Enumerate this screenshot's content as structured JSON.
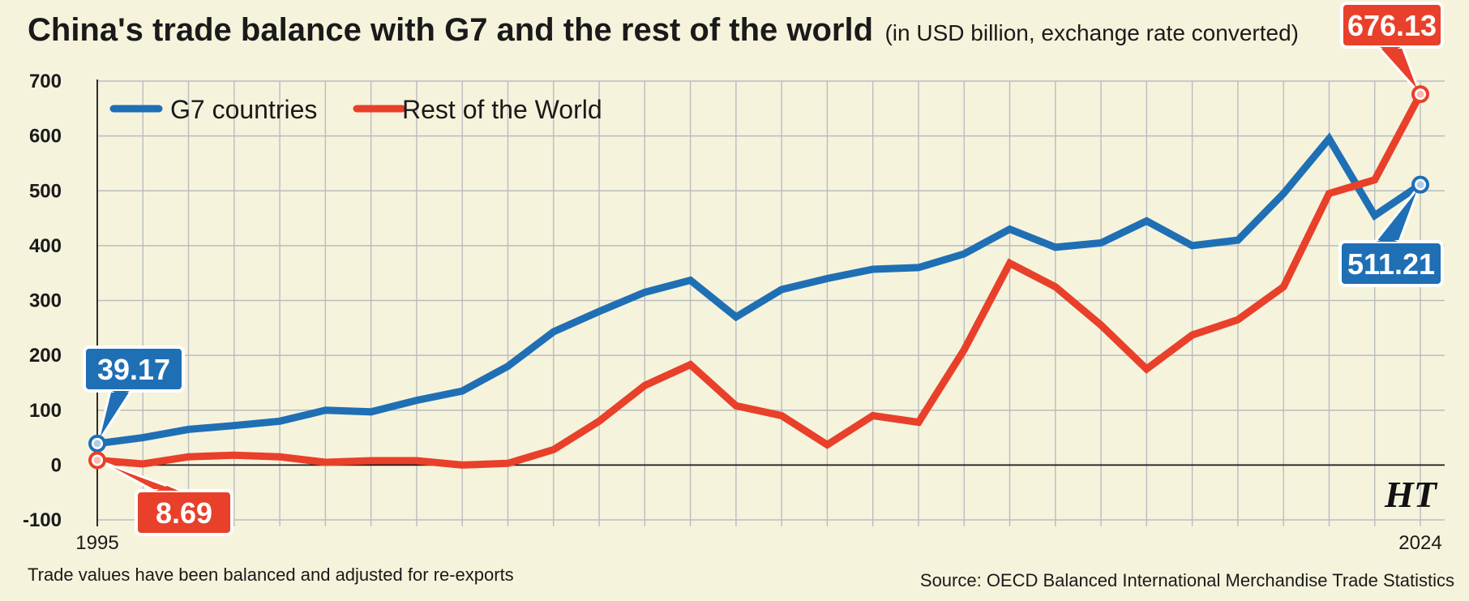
{
  "title": "China's trade balance with G7 and the rest of the world",
  "subtitle": "(in USD billion, exchange rate converted)",
  "footnote_left": "Trade values have been balanced and adjusted for re-exports",
  "footnote_right": "Source: OECD Balanced International Merchandise Trade Statistics",
  "logo": "HT",
  "colors": {
    "background": "#f6f3dc",
    "grid": "#b9bcc0",
    "g7": "#1f6fb5",
    "row": "#e8402a"
  },
  "chart_data": {
    "type": "line",
    "xlabel": "",
    "ylabel": "",
    "x": [
      1995,
      1996,
      1997,
      1998,
      1999,
      2000,
      2001,
      2002,
      2003,
      2004,
      2005,
      2006,
      2007,
      2008,
      2009,
      2010,
      2011,
      2012,
      2013,
      2014,
      2015,
      2016,
      2017,
      2018,
      2019,
      2020,
      2021,
      2022,
      2023,
      2024
    ],
    "x_tick_labels": [
      {
        "x": 1995,
        "label": "1995"
      },
      {
        "x": 2024,
        "label": "2024"
      }
    ],
    "ylim": [
      -100,
      700
    ],
    "yticks": [
      -100,
      0,
      100,
      200,
      300,
      400,
      500,
      600,
      700
    ],
    "grid": true,
    "legend_position": "top-left",
    "series": [
      {
        "name": "G7 countries",
        "color": "#1f6fb5",
        "values": [
          39.17,
          50,
          65,
          72,
          80,
          100,
          97,
          118,
          135,
          180,
          243,
          280,
          315,
          337,
          270,
          320,
          340,
          357,
          360,
          385,
          430,
          397,
          405,
          445,
          400,
          410,
          495,
          595,
          455,
          511.21
        ]
      },
      {
        "name": "Rest of the World",
        "color": "#e8402a",
        "values": [
          8.69,
          2,
          15,
          18,
          15,
          5,
          8,
          8,
          0,
          3,
          28,
          80,
          145,
          183,
          108,
          90,
          37,
          90,
          78,
          210,
          368,
          325,
          255,
          175,
          237,
          265,
          325,
          495,
          520,
          676.13
        ]
      }
    ],
    "annotations": [
      {
        "series": "G7 countries",
        "x": 1995,
        "label": "39.17"
      },
      {
        "series": "Rest of the World",
        "x": 1995,
        "label": "8.69"
      },
      {
        "series": "G7 countries",
        "x": 2024,
        "label": "511.21"
      },
      {
        "series": "Rest of the World",
        "x": 2024,
        "label": "676.13"
      }
    ]
  }
}
